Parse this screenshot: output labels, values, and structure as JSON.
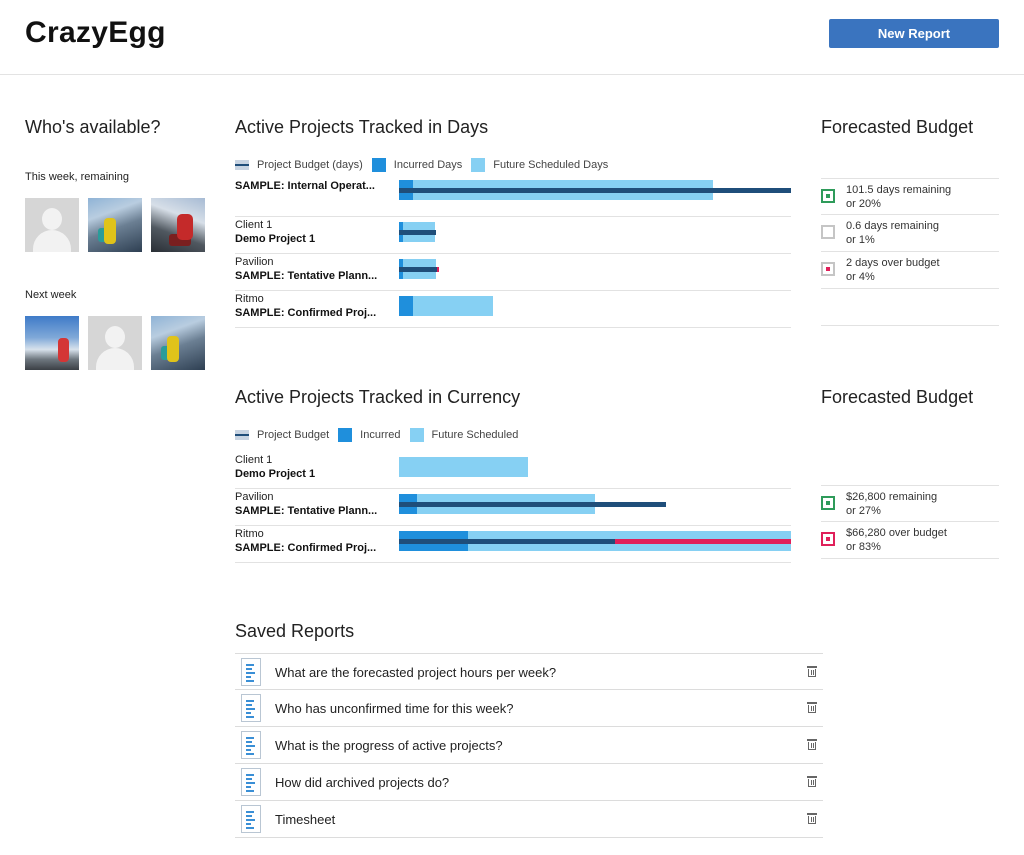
{
  "header": {
    "logo": "CrazyEgg",
    "new_report_label": "New Report"
  },
  "availability": {
    "title": "Who's available?",
    "this_week_label": "This week, remaining",
    "next_week_label": "Next week"
  },
  "days_section": {
    "title": "Active Projects Tracked in Days",
    "legend": {
      "budget": "Project Budget (days)",
      "incurred": "Incurred Days",
      "future": "Future Scheduled Days"
    },
    "rows": [
      {
        "client": "",
        "project": "SAMPLE: Internal Operat..."
      },
      {
        "client": "Client 1",
        "project": "Demo Project 1"
      },
      {
        "client": "Pavilion",
        "project": "SAMPLE: Tentative Plann..."
      },
      {
        "client": "Ritmo",
        "project": "SAMPLE: Confirmed Proj..."
      }
    ]
  },
  "days_forecast": {
    "title": "Forecasted Budget",
    "items": [
      {
        "line1": "101.5 days remaining",
        "line2": "or 20%"
      },
      {
        "line1": "0.6 days remaining",
        "line2": "or 1%"
      },
      {
        "line1": "2 days over budget",
        "line2": "or 4%"
      }
    ]
  },
  "currency_section": {
    "title": "Active Projects Tracked in Currency",
    "legend": {
      "budget": "Project Budget",
      "incurred": "Incurred",
      "future": "Future Scheduled"
    },
    "rows": [
      {
        "client": "Client 1",
        "project": "Demo Project 1"
      },
      {
        "client": "Pavilion",
        "project": "SAMPLE: Tentative Plann..."
      },
      {
        "client": "Ritmo",
        "project": "SAMPLE: Confirmed Proj..."
      }
    ]
  },
  "currency_forecast": {
    "title": "Forecasted Budget",
    "items": [
      {
        "line1": "$26,800 remaining",
        "line2": "or 27%"
      },
      {
        "line1": "$66,280 over budget",
        "line2": "or 83%"
      }
    ]
  },
  "saved_reports": {
    "title": "Saved Reports",
    "items": [
      "What are the forecasted project hours per week?",
      "Who has unconfirmed time for this week?",
      "What is the progress of active projects?",
      "How did archived projects do?",
      "Timesheet"
    ]
  },
  "colors": {
    "primary": "#3a74bf",
    "budget": "#1f4e7a",
    "incurred": "#1f8fdc",
    "future": "#86d0f3",
    "over": "#e0205a",
    "ok": "#2e9b5a"
  },
  "chart_data": [
    {
      "type": "bar",
      "categories": [
        "SAMPLE: Internal Operat...",
        "Demo Project 1",
        "SAMPLE: Tentative Plann...",
        "SAMPLE: Confirmed Proj..."
      ],
      "series": [
        {
          "name": "Project Budget (days)",
          "values": [
            100,
            9.5,
            9.8,
            0
          ]
        },
        {
          "name": "Incurred Days",
          "values": [
            3.5,
            1,
            1,
            3.5
          ]
        },
        {
          "name": "Future Scheduled Days",
          "values": [
            80,
            9.2,
            9.5,
            24
          ]
        }
      ],
      "over_budget": [
        0,
        0,
        0.4,
        0
      ]
    },
    {
      "type": "bar",
      "categories": [
        "Demo Project 1",
        "SAMPLE: Tentative Plann...",
        "SAMPLE: Confirmed Proj..."
      ],
      "series": [
        {
          "name": "Project Budget",
          "values": [
            0,
            68,
            55
          ]
        },
        {
          "name": "Incurred",
          "values": [
            0,
            4.5,
            17.5
          ]
        },
        {
          "name": "Future Scheduled",
          "values": [
            33,
            50,
            100
          ]
        }
      ],
      "over_budget": [
        0,
        0,
        45
      ]
    }
  ]
}
